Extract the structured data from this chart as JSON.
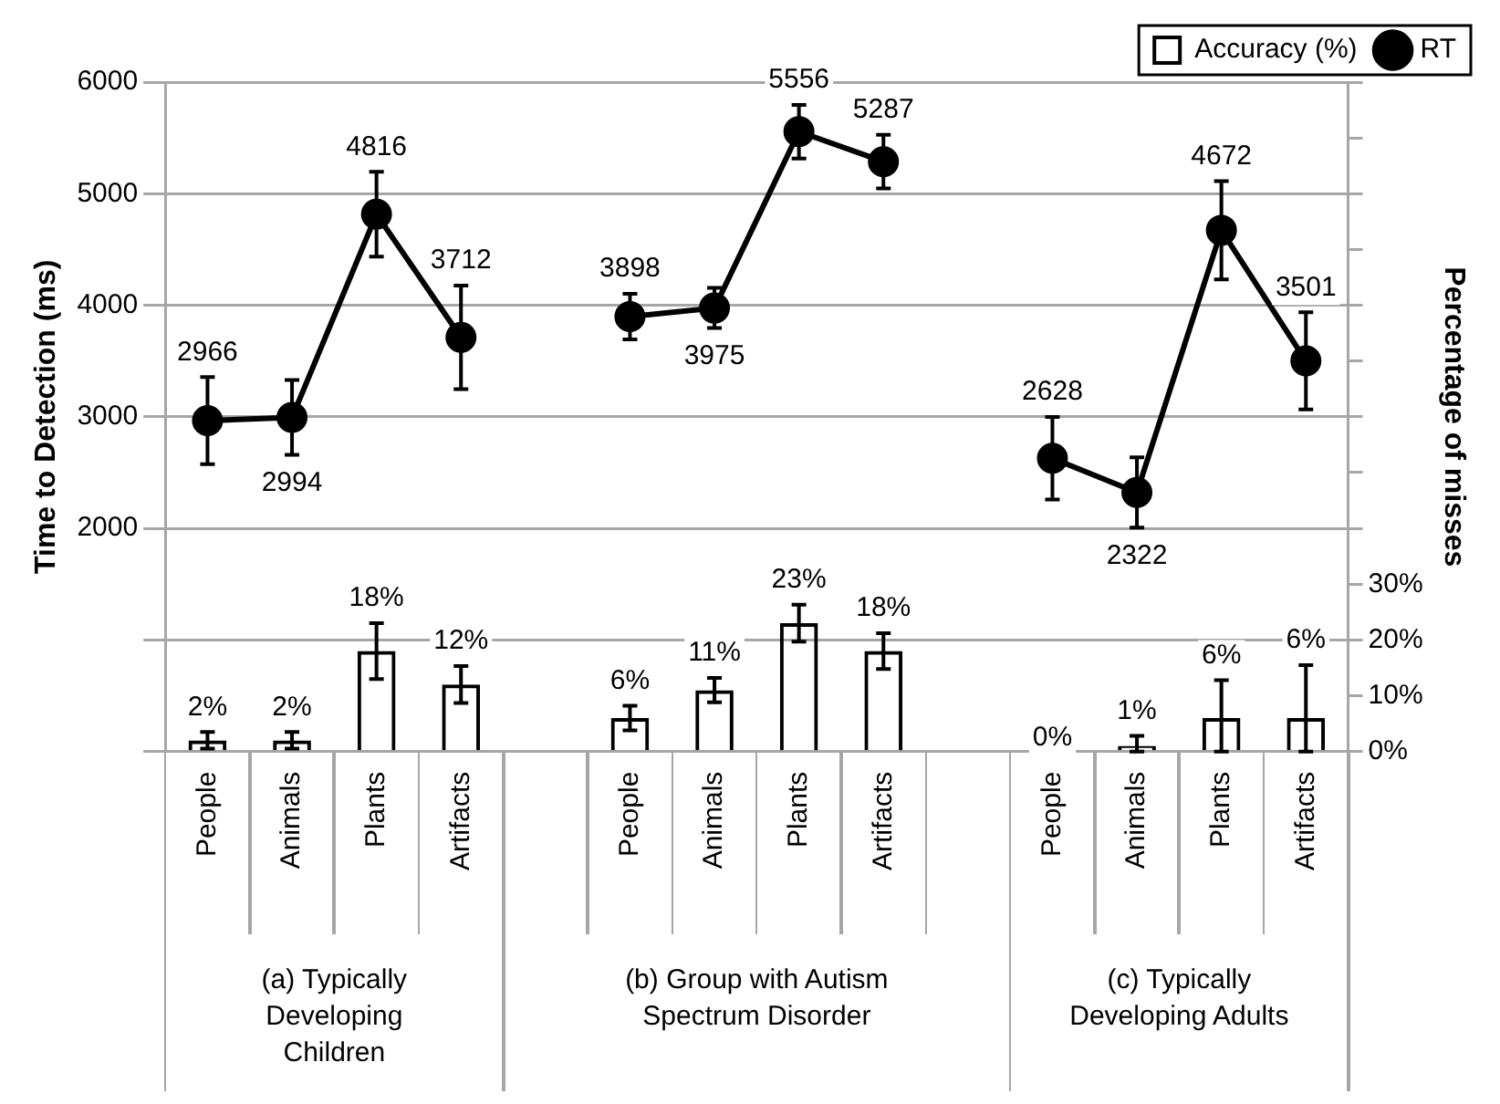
{
  "chart_data": {
    "type": "bar",
    "ylabel": "Time to Detection (ms)",
    "y2label": "Percentage of misses",
    "categories": [
      "People",
      "Animals",
      "Plants",
      "Artifacts",
      null,
      "People",
      "Animals",
      "Plants",
      "Artifacts",
      null,
      "People",
      "Animals",
      "Plants",
      "Artifacts"
    ],
    "series": [
      {
        "name": "Accuracy (%)",
        "axis": "y2",
        "color": "#000000",
        "values": [
          2,
          2,
          18,
          12,
          null,
          6,
          11,
          23,
          18,
          null,
          0,
          1,
          6,
          6
        ],
        "errors": [
          1.5,
          1.5,
          5,
          3.3,
          null,
          2.2,
          2.2,
          3.3,
          3.2,
          null,
          null,
          [
            0,
            2.8
          ],
          [
            0,
            12.8
          ],
          [
            0,
            15.5
          ]
        ],
        "value_labels": [
          "2%",
          "2%",
          "18%",
          "12%",
          null,
          "6%",
          "11%",
          "23%",
          "18%",
          null,
          "0%",
          "1%",
          "6%",
          "6%"
        ]
      },
      {
        "name": "RT",
        "type": "line",
        "color": "#000000",
        "values": [
          2966,
          2994,
          4816,
          3712,
          null,
          3898,
          3975,
          5556,
          5287,
          null,
          2628,
          2322,
          4672,
          3501
        ],
        "errors": [
          390,
          335,
          380,
          465,
          null,
          205,
          180,
          240,
          240,
          null,
          370,
          315,
          440,
          435
        ],
        "value_labels": [
          "2966",
          "2994",
          "4816",
          "3712",
          null,
          "3898",
          "3975",
          "5556",
          "5287",
          null,
          "2628",
          "2322",
          "4672",
          "3501"
        ]
      }
    ],
    "ylim": [
      0,
      6000
    ],
    "yticks": [
      {
        "value": 0,
        "label": null
      },
      {
        "value": 1000,
        "label": null
      },
      2000,
      3000,
      4000,
      5000,
      6000
    ],
    "y2lim": [
      0,
      120
    ],
    "y2ticks": [
      {
        "value": 0,
        "label": "0%"
      },
      {
        "value": 10,
        "label": "10%"
      },
      {
        "value": 20,
        "label": "20%"
      },
      {
        "value": 30,
        "label": "30%"
      },
      {
        "value": 40,
        "label": null
      },
      {
        "value": 50,
        "label": null
      },
      {
        "value": 60,
        "label": null
      },
      {
        "value": 70,
        "label": null
      },
      {
        "value": 80,
        "label": null
      },
      {
        "value": 90,
        "label": null
      },
      {
        "value": 100,
        "label": null
      },
      {
        "value": 110,
        "label": null
      },
      {
        "value": 120,
        "label": null
      }
    ],
    "grid": "y",
    "legend": "top right",
    "marker": "circle",
    "line_style": "solid",
    "annotations": [
      "(a) Typically Developing Children",
      "(b) Group with Autism Spectrum Disorder",
      "(c) Typically Developing Adults"
    ]
  }
}
